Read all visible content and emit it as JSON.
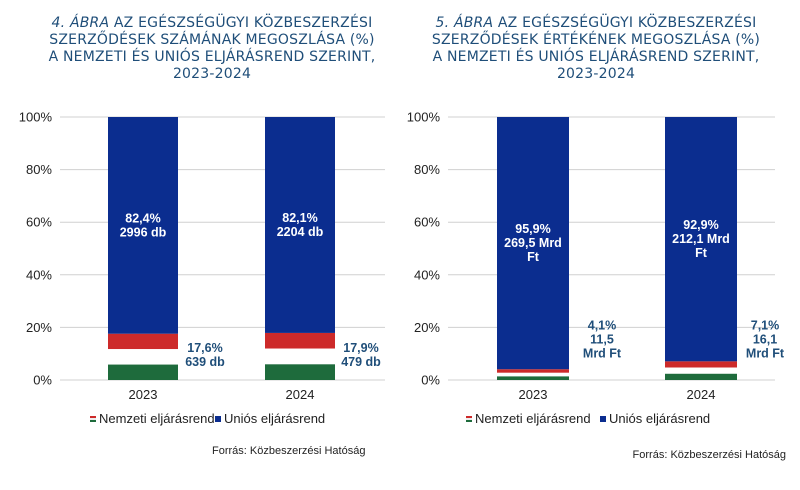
{
  "colors": {
    "uni": "#0b2d8f",
    "red": "#cd2a2a",
    "white": "#ffffff",
    "green": "#1e6b3c",
    "title": "#1f4e79"
  },
  "chart_data": [
    {
      "type": "bar",
      "stacked": true,
      "title_number": "4. ÁBRA",
      "title_lines": [
        "AZ EGÉSZSÉGÜGYI KÖZBESZERZÉSI",
        "SZERZŐDÉSEK SZÁMÁNAK MEGOSZLÁSA (%)",
        "A NEMZETI ÉS UNIÓS ELJÁRÁSREND SZERINT,",
        "2023-2024"
      ],
      "categories": [
        "2023",
        "2024"
      ],
      "ylim": [
        0,
        100
      ],
      "yticks": [
        "0%",
        "20%",
        "40%",
        "60%",
        "80%",
        "100%"
      ],
      "series": [
        {
          "name": "Nemzeti eljárásrend",
          "values": [
            17.6,
            17.9
          ],
          "labels": [
            [
              "17,6%",
              "639 db"
            ],
            [
              "17,9%",
              "479 db"
            ]
          ]
        },
        {
          "name": "Uniós eljárásrend",
          "values": [
            82.4,
            82.1
          ],
          "labels": [
            [
              "82,4%",
              "2996 db"
            ],
            [
              "82,1%",
              "2204 db"
            ]
          ]
        }
      ],
      "legend": "bottom",
      "source": "Forrás: Közbeszerzési Hatóság"
    },
    {
      "type": "bar",
      "stacked": true,
      "title_number": "5. ÁBRA",
      "title_lines": [
        "AZ EGÉSZSÉGÜGYI KÖZBESZERZÉSI",
        "SZERZŐDÉSEK ÉRTÉKÉNEK MEGOSZLÁSA (%)",
        "A NEMZETI ÉS UNIÓS ELJÁRÁSREND SZERINT,",
        "2023-2024"
      ],
      "categories": [
        "2023",
        "2024"
      ],
      "ylim": [
        0,
        100
      ],
      "yticks": [
        "0%",
        "20%",
        "40%",
        "60%",
        "80%",
        "100%"
      ],
      "series": [
        {
          "name": "Nemzeti eljárásrend",
          "values": [
            4.1,
            7.1
          ],
          "labels": [
            [
              "4,1%",
              "11,5",
              "Mrd Ft"
            ],
            [
              "7,1%",
              "16,1",
              "Mrd Ft"
            ]
          ]
        },
        {
          "name": "Uniós eljárásrend",
          "values": [
            95.9,
            92.9
          ],
          "labels": [
            [
              "95,9%",
              "269,5 Mrd",
              "Ft"
            ],
            [
              "92,9%",
              "212,1 Mrd",
              "Ft"
            ]
          ]
        }
      ],
      "legend": "bottom",
      "source": "Forrás: Közbeszerzési Hatóság"
    }
  ]
}
